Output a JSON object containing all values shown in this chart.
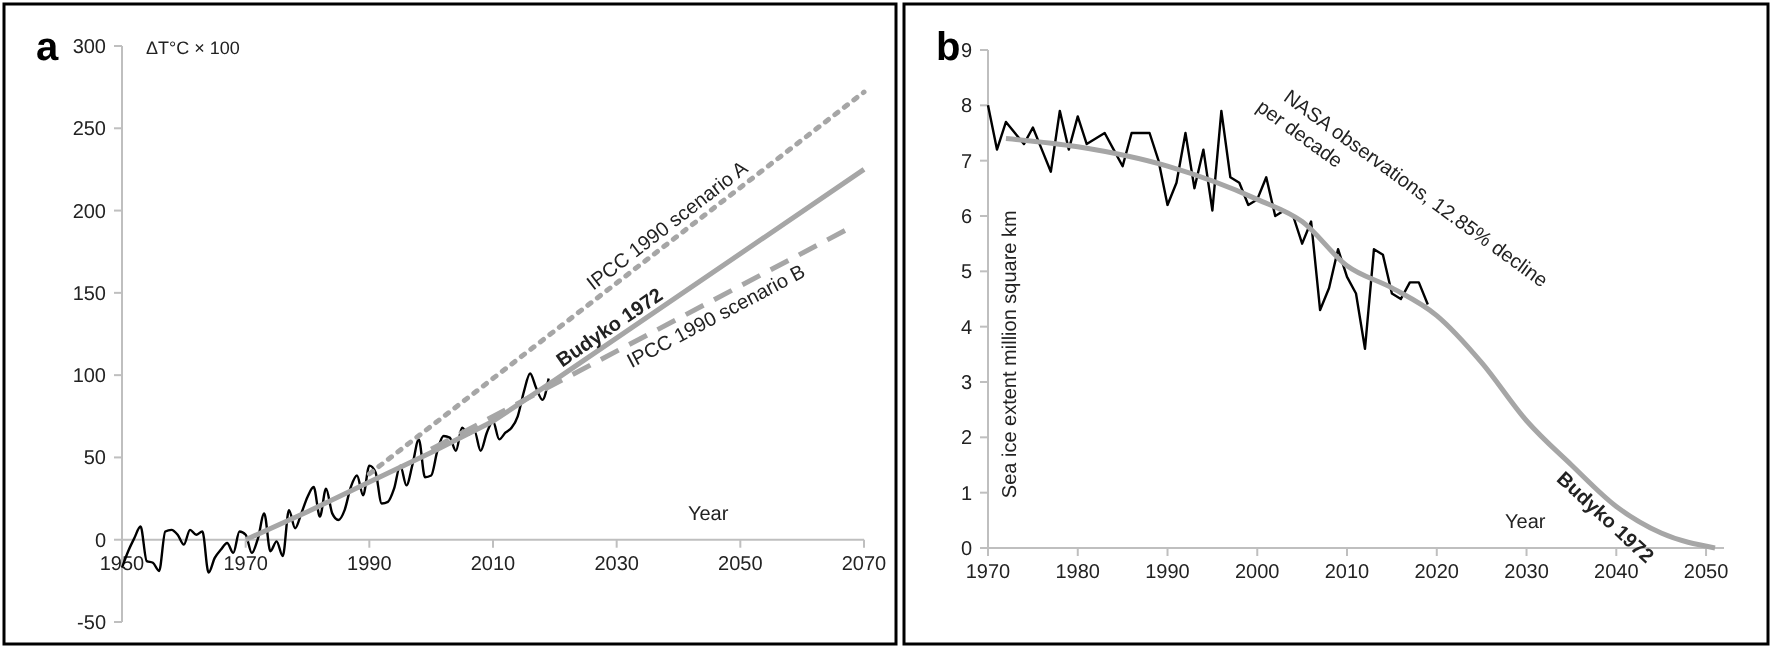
{
  "chart_data": [
    {
      "type": "line",
      "title": "a",
      "ylabel": "ΔT°C × 100",
      "xlabel": "Year",
      "xlim": [
        1950,
        2070
      ],
      "xticks": [
        1950,
        1970,
        1990,
        2010,
        2030,
        2050,
        2070
      ],
      "ylim": [
        -50,
        300
      ],
      "yticks": [
        -50,
        0,
        50,
        100,
        150,
        200,
        250,
        300
      ],
      "series": [
        {
          "color": "#000000",
          "line_style": "solid",
          "x": [
            1950,
            1951,
            1952,
            1953,
            1954,
            1955,
            1956,
            1957,
            1958,
            1959,
            1960,
            1961,
            1962,
            1963,
            1964,
            1965,
            1966,
            1967,
            1968,
            1969,
            1970,
            1971,
            1972,
            1973,
            1974,
            1975,
            1976,
            1977,
            1978,
            1979,
            1980,
            1981,
            1982,
            1983,
            1984,
            1985,
            1986,
            1987,
            1988,
            1989,
            1990,
            1991,
            1992,
            1993,
            1994,
            1995,
            1996,
            1997,
            1998,
            1999,
            2000,
            2001,
            2002,
            2003,
            2004,
            2005,
            2006,
            2007,
            2008,
            2009,
            2010,
            2011,
            2012,
            2013,
            2014,
            2015,
            2016,
            2017,
            2018,
            2019
          ],
          "values": [
            -17,
            -7,
            1,
            8,
            -13,
            -14,
            -19,
            5,
            6,
            3,
            -3,
            6,
            3,
            5,
            -20,
            -11,
            -6,
            -2,
            -8,
            5,
            3,
            -8,
            1,
            16,
            -7,
            -1,
            -10,
            18,
            7,
            16,
            26,
            32,
            14,
            31,
            16,
            12,
            18,
            32,
            39,
            27,
            45,
            41,
            22,
            23,
            31,
            45,
            33,
            46,
            61,
            38,
            39,
            54,
            63,
            62,
            54,
            68,
            64,
            66,
            54,
            65,
            72,
            61,
            65,
            68,
            75,
            90,
            101,
            92,
            85,
            98
          ]
        },
        {
          "name": "IPCC 1990 scenario A",
          "color": "#a6a6a6",
          "line_style": "dotted",
          "x": [
            1990,
            2070
          ],
          "values": [
            40,
            272
          ]
        },
        {
          "name": "Budyko 1972",
          "color": "#a6a6a6",
          "line_style": "solid",
          "x": [
            1970,
            1980,
            1990,
            2000,
            2010,
            2020,
            2070
          ],
          "values": [
            0,
            17,
            35,
            53,
            72,
            97,
            225
          ]
        },
        {
          "name": "IPCC 1990 scenario B",
          "color": "#a6a6a6",
          "line_style": "dashed",
          "x": [
            2000,
            2068
          ],
          "values": [
            55,
            190
          ]
        }
      ]
    },
    {
      "type": "line",
      "title": "b",
      "ylabel": "Sea ice extent million square km",
      "xlabel": "Year",
      "xlim": [
        1970,
        2052
      ],
      "xticks": [
        1970,
        1980,
        1990,
        2000,
        2010,
        2020,
        2030,
        2040,
        2050
      ],
      "ylim": [
        0,
        9
      ],
      "yticks": [
        0,
        1,
        2,
        3,
        4,
        5,
        6,
        7,
        8,
        9
      ],
      "annotations": [
        "NASA observations, 12.85% decline\nper decade"
      ],
      "series": [
        {
          "color": "#000000",
          "line_style": "solid",
          "x": [
            1970,
            1971,
            1972,
            1973,
            1974,
            1975,
            1976,
            1977,
            1978,
            1979,
            1980,
            1981,
            1982,
            1983,
            1984,
            1985,
            1986,
            1987,
            1988,
            1989,
            1990,
            1991,
            1992,
            1993,
            1994,
            1995,
            1996,
            1997,
            1998,
            1999,
            2000,
            2001,
            2002,
            2003,
            2004,
            2005,
            2006,
            2007,
            2008,
            2009,
            2010,
            2011,
            2012,
            2013,
            2014,
            2015,
            2016,
            2017,
            2018,
            2019
          ],
          "values": [
            8.0,
            7.2,
            7.7,
            7.5,
            7.3,
            7.6,
            7.2,
            6.8,
            7.9,
            7.2,
            7.8,
            7.3,
            7.4,
            7.5,
            7.2,
            6.9,
            7.5,
            7.5,
            7.5,
            7.0,
            6.2,
            6.6,
            7.5,
            6.5,
            7.2,
            6.1,
            7.9,
            6.7,
            6.6,
            6.2,
            6.3,
            6.7,
            6.0,
            6.1,
            6.0,
            5.5,
            5.9,
            4.3,
            4.7,
            5.4,
            4.9,
            4.6,
            3.6,
            5.4,
            5.3,
            4.6,
            4.5,
            4.8,
            4.8,
            4.4
          ]
        },
        {
          "name": "Budyko 1972",
          "color": "#a6a6a6",
          "line_style": "solid",
          "x": [
            1972,
            1980,
            1990,
            2000,
            2005,
            2010,
            2015,
            2020,
            2025,
            2030,
            2035,
            2040,
            2045,
            2051
          ],
          "values": [
            7.4,
            7.25,
            6.9,
            6.3,
            5.9,
            5.1,
            4.7,
            4.2,
            3.35,
            2.3,
            1.5,
            0.75,
            0.27,
            0
          ]
        }
      ]
    }
  ]
}
